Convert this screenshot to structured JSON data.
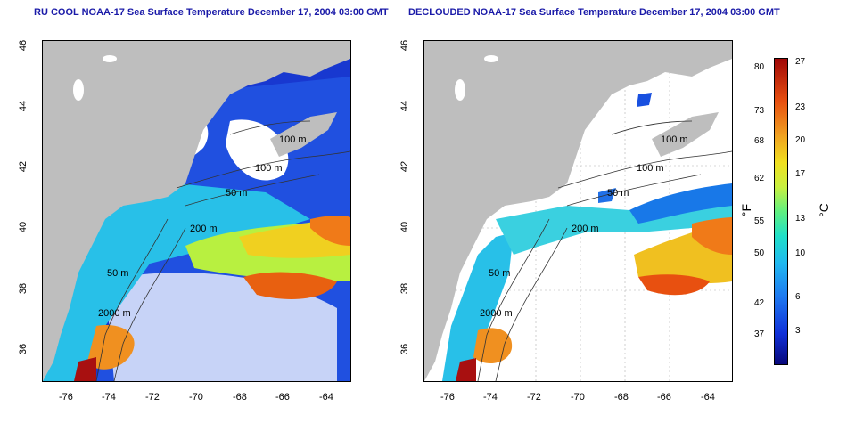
{
  "titles": {
    "left": "RU COOL NOAA-17 Sea Surface Temperature December 17, 2004 03:00 GMT",
    "right": "DECLOUDED NOAA-17 Sea Surface Temperature December 17, 2004 03:00 GMT"
  },
  "axes": {
    "x_ticks": [
      "-76",
      "-74",
      "-72",
      "-70",
      "-68",
      "-66",
      "-64"
    ],
    "y_ticks": [
      "46",
      "44",
      "42",
      "40",
      "38",
      "36"
    ]
  },
  "contours": {
    "left": [
      "100 m",
      "100 m",
      "50 m",
      "200 m",
      "50 m",
      "2000 m"
    ],
    "right": [
      "100 m",
      "100 m",
      "50 m",
      "200 m",
      "50 m",
      "2000 m"
    ]
  },
  "colorbar": {
    "fahrenheit_ticks": [
      "80",
      "73",
      "68",
      "62",
      "55",
      "50",
      "42",
      "37"
    ],
    "celsius_ticks": [
      "27",
      "23",
      "20",
      "17",
      "13",
      "10",
      "6",
      "3"
    ],
    "fahrenheit_unit": "°F",
    "celsius_unit": "°C"
  },
  "colors": {
    "land": "#bebebe",
    "title": "#1a1aa8",
    "cold": "#1030d8",
    "warm": "#e85010"
  }
}
